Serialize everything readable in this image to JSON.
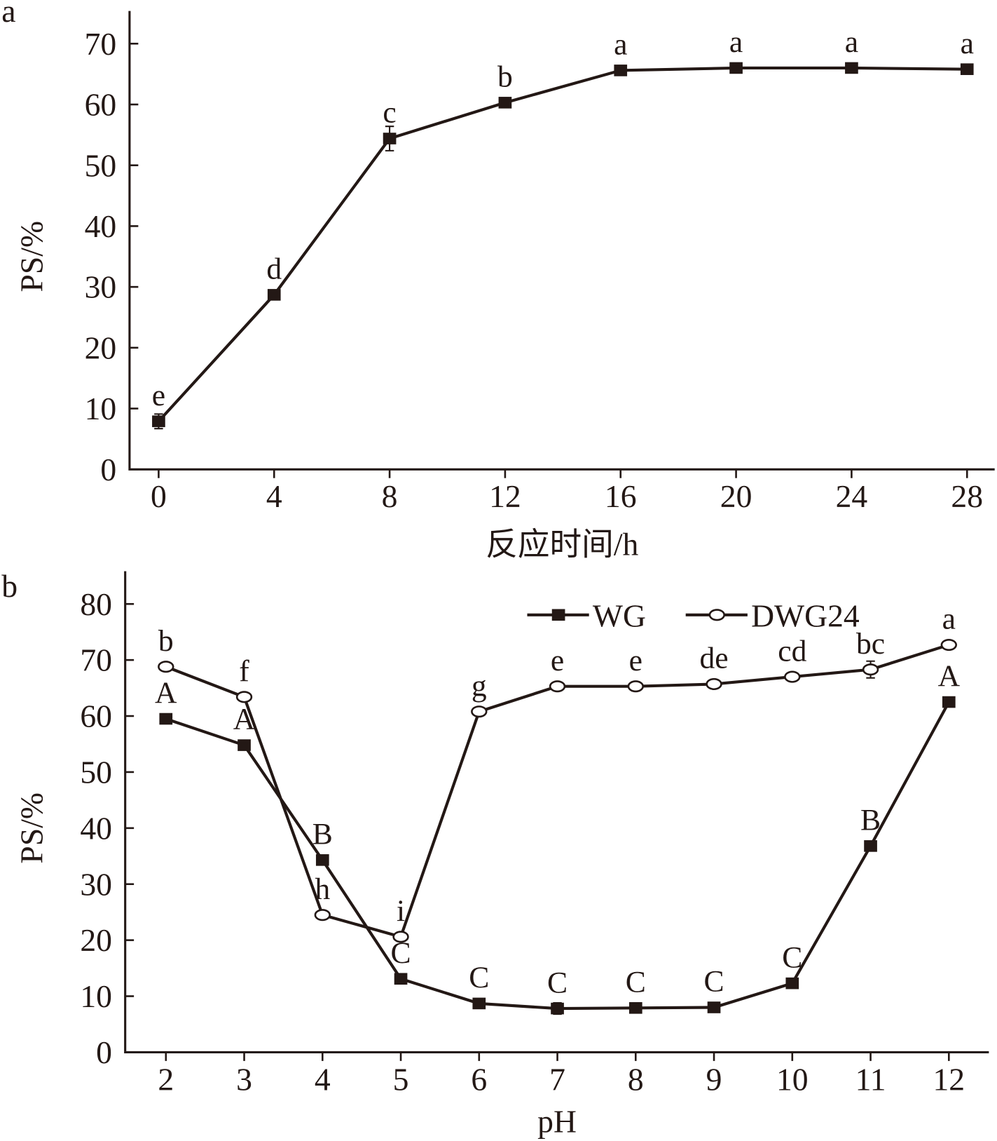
{
  "chart_data": [
    {
      "panel": "a",
      "type": "line",
      "xlabel": "反应时间/h",
      "ylabel": "PS/%",
      "xlim": [
        0,
        28
      ],
      "ylim": [
        0,
        70
      ],
      "xticks": [
        0,
        4,
        8,
        12,
        16,
        20,
        24,
        28
      ],
      "yticks": [
        0,
        10,
        20,
        30,
        40,
        50,
        60,
        70
      ],
      "series": [
        {
          "name": "PS",
          "marker": "filled-square",
          "x": [
            0,
            4,
            8,
            12,
            16,
            20,
            24,
            28
          ],
          "values": [
            7.9,
            28.7,
            54.4,
            60.3,
            65.6,
            66.0,
            66.0,
            65.8
          ],
          "error": [
            1.2,
            0.5,
            2.0,
            0.5,
            0.4,
            0.4,
            0.4,
            0.4
          ],
          "labels": [
            "e",
            "d",
            "c",
            "b",
            "a",
            "a",
            "a",
            "a"
          ]
        }
      ]
    },
    {
      "panel": "b",
      "type": "line",
      "xlabel": "pH",
      "ylabel": "PS/%",
      "xlim": [
        2,
        12
      ],
      "ylim": [
        0,
        80
      ],
      "xticks": [
        2,
        3,
        4,
        5,
        6,
        7,
        8,
        9,
        10,
        11,
        12
      ],
      "yticks": [
        0,
        10,
        20,
        30,
        40,
        50,
        60,
        70,
        80
      ],
      "legend": "top-right",
      "series": [
        {
          "name": "WG",
          "marker": "filled-square",
          "x": [
            2,
            3,
            4,
            5,
            6,
            7,
            8,
            9,
            10,
            11,
            12
          ],
          "values": [
            59.5,
            54.8,
            34.3,
            13.1,
            8.7,
            7.8,
            7.9,
            8.0,
            12.3,
            36.8,
            62.5
          ],
          "error": [
            0.4,
            0.4,
            0.4,
            0.4,
            0.4,
            1.0,
            0.4,
            0.4,
            0.4,
            0.4,
            0.4
          ],
          "labels": [
            "A",
            "A",
            "B",
            "C",
            "C",
            "C",
            "C",
            "C",
            "C",
            "B",
            "A"
          ]
        },
        {
          "name": "DWG24",
          "marker": "open-circle",
          "x": [
            2,
            3,
            4,
            5,
            6,
            7,
            8,
            9,
            10,
            11,
            12
          ],
          "values": [
            68.8,
            63.4,
            24.5,
            20.6,
            60.8,
            65.3,
            65.3,
            65.7,
            67.0,
            68.3,
            72.7
          ],
          "error": [
            0.5,
            0.5,
            0.5,
            0.8,
            0.6,
            0.5,
            0.8,
            0.8,
            0.5,
            1.5,
            0.5
          ],
          "labels": [
            "b",
            "f",
            "h",
            "i",
            "g",
            "e",
            "e",
            "de",
            "cd",
            "bc",
            "a"
          ]
        }
      ]
    }
  ]
}
